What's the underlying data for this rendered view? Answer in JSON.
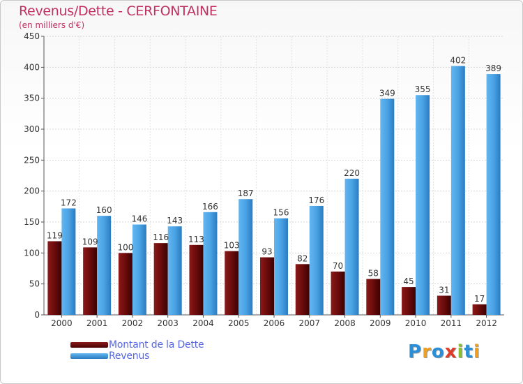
{
  "title": "Revenus/Dette - CERFONTAINE",
  "subtitle": "(en milliers d'€)",
  "logo": {
    "text": "Proxiti",
    "letters": [
      {
        "ch": "P",
        "color": "#2a8fd8"
      },
      {
        "ch": "r",
        "color": "#f0a020"
      },
      {
        "ch": "o",
        "color": "#2a8fd8"
      },
      {
        "ch": "x",
        "color": "#e03a2a"
      },
      {
        "ch": "i",
        "color": "#8ac030"
      },
      {
        "ch": "t",
        "color": "#2a8fd8"
      },
      {
        "ch": "i",
        "color": "#f0a020"
      }
    ]
  },
  "legend": {
    "items": [
      {
        "label": "Montant de la Dette",
        "color": "#6b0b0b"
      },
      {
        "label": "Revenus",
        "color": "#4aa3e4"
      }
    ]
  },
  "chart_data": {
    "type": "bar",
    "title": "Revenus/Dette - CERFONTAINE",
    "ylabel": "(en milliers d'€)",
    "xlabel": "",
    "ylim": [
      0,
      450
    ],
    "yticks": [
      0,
      50,
      100,
      150,
      200,
      250,
      300,
      350,
      400,
      450
    ],
    "grid": true,
    "legend_position": "bottom-left",
    "categories": [
      "2000",
      "2001",
      "2002",
      "2003",
      "2004",
      "2005",
      "2006",
      "2007",
      "2008",
      "2009",
      "2010",
      "2011",
      "2012"
    ],
    "series": [
      {
        "name": "Montant de la Dette",
        "color": "#6b0b0b",
        "values": [
          119,
          109,
          100,
          116,
          113,
          103,
          93,
          82,
          70,
          58,
          45,
          31,
          17
        ]
      },
      {
        "name": "Revenus",
        "color": "#4aa3e4",
        "values": [
          172,
          160,
          146,
          143,
          166,
          187,
          156,
          176,
          220,
          349,
          355,
          402,
          389
        ]
      }
    ]
  }
}
